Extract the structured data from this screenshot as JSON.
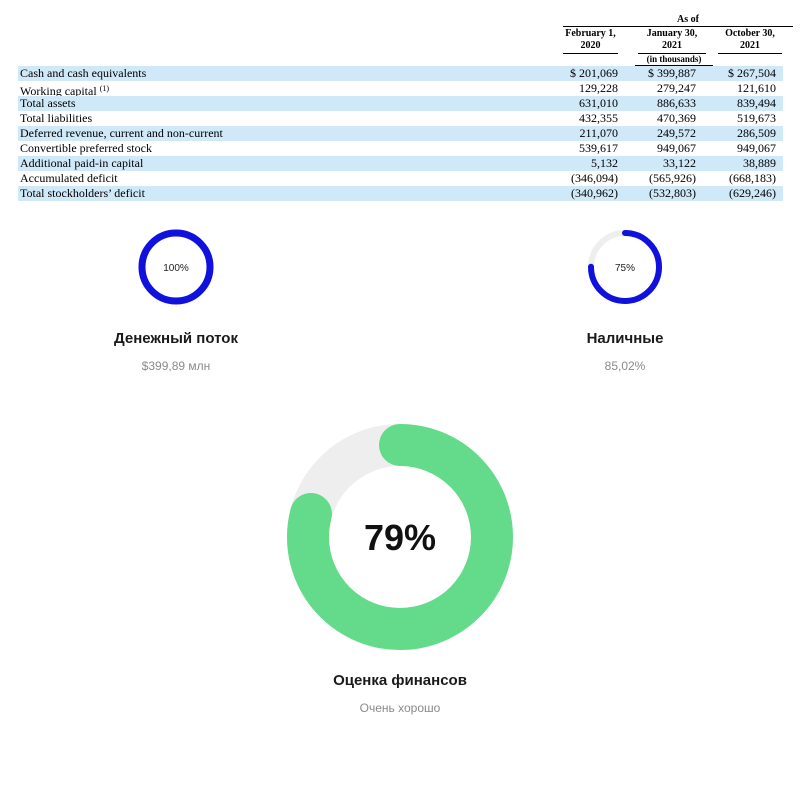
{
  "table": {
    "as_of": "As of",
    "columns": [
      {
        "line1": "February 1,",
        "line2": "2020"
      },
      {
        "line1": "January 30,",
        "line2": "2021"
      },
      {
        "line1": "October 30,",
        "line2": "2021"
      }
    ],
    "units": "(in thousands)",
    "rows": [
      {
        "label": "Cash and cash equivalents",
        "note": "",
        "values": [
          "$ 201,069",
          "$ 399,887",
          "$ 267,504"
        ]
      },
      {
        "label": "Working capital",
        "note": "(1)",
        "values": [
          "129,228",
          "279,247",
          "121,610"
        ]
      },
      {
        "label": "Total assets",
        "note": "",
        "values": [
          "631,010",
          "886,633",
          "839,494"
        ]
      },
      {
        "label": "Total liabilities",
        "note": "",
        "values": [
          "432,355",
          "470,369",
          "519,673"
        ]
      },
      {
        "label": "Deferred revenue, current and non-current",
        "note": "",
        "values": [
          "211,070",
          "249,572",
          "286,509"
        ]
      },
      {
        "label": "Convertible preferred stock",
        "note": "",
        "values": [
          "539,617",
          "949,067",
          "949,067"
        ]
      },
      {
        "label": "Additional paid-in capital",
        "note": "",
        "values": [
          "5,132",
          "33,122",
          "38,889"
        ]
      },
      {
        "label": "Accumulated deficit",
        "note": "",
        "values": [
          "(346,094)",
          "(565,926)",
          "(668,183)"
        ]
      },
      {
        "label": "Total stockholders’ deficit",
        "note": "",
        "values": [
          "(340,962)",
          "(532,803)",
          "(629,246)"
        ]
      }
    ]
  },
  "gauges": [
    {
      "id": "cashflow",
      "percent_label": "100%",
      "fraction": 1.0,
      "title": "Денежный поток",
      "subtitle": "$399,89 млн",
      "color": "#1111dd",
      "track": "#eeeeee"
    },
    {
      "id": "cash",
      "percent_label": "75%",
      "fraction": 0.75,
      "title": "Наличные",
      "subtitle": "85,02%",
      "color": "#1111dd",
      "track": "#eeeeee"
    },
    {
      "id": "score",
      "percent_label": "79%",
      "fraction": 0.79,
      "title": "Оценка финансов",
      "subtitle": "Очень хорошо",
      "color": "#63db8a",
      "track": "#eeeeee"
    }
  ]
}
